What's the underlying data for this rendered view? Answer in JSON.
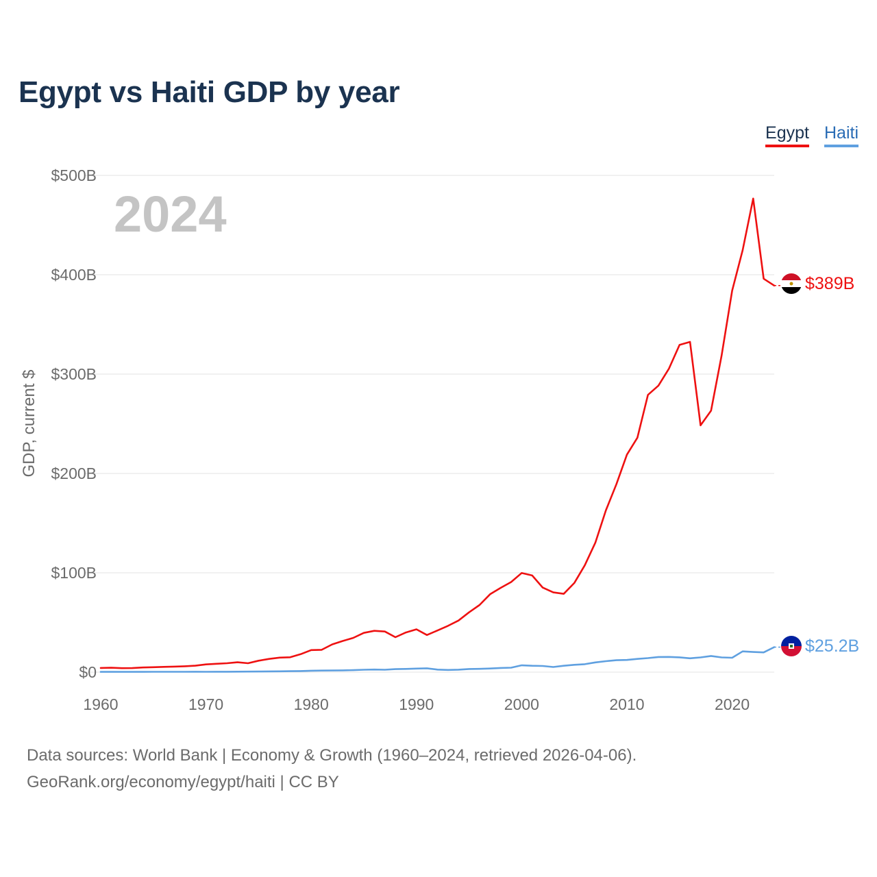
{
  "title": "Egypt vs Haiti GDP by year",
  "year_watermark": "2024",
  "source_line1": "Data sources: World Bank | Economy & Growth (1960–2024, retrieved 2026-04-06).",
  "source_line2": "GeoRank.org/economy/egypt/haiti | CC BY",
  "chart_data": {
    "type": "line",
    "title": "Egypt vs Haiti GDP by year",
    "xlabel": "",
    "ylabel": "GDP, current $",
    "xlim": [
      1960,
      2024
    ],
    "ylim": [
      0,
      500
    ],
    "y_unit": "billions USD",
    "grid": true,
    "legend_position": "top-right",
    "x_ticks": [
      1960,
      1970,
      1980,
      1990,
      2000,
      2010,
      2020
    ],
    "x_tick_labels": [
      "1960",
      "1970",
      "1980",
      "1990",
      "2000",
      "2010",
      "2020"
    ],
    "y_ticks": [
      0,
      100,
      200,
      300,
      400,
      500
    ],
    "y_tick_labels": [
      "$0",
      "$100B",
      "$200B",
      "$300B",
      "$400B",
      "$500B"
    ],
    "x": [
      1960,
      1961,
      1962,
      1963,
      1964,
      1965,
      1966,
      1967,
      1968,
      1969,
      1970,
      1971,
      1972,
      1973,
      1974,
      1975,
      1976,
      1977,
      1978,
      1979,
      1980,
      1981,
      1982,
      1983,
      1984,
      1985,
      1986,
      1987,
      1988,
      1989,
      1990,
      1991,
      1992,
      1993,
      1994,
      1995,
      1996,
      1997,
      1998,
      1999,
      2000,
      2001,
      2002,
      2003,
      2004,
      2005,
      2006,
      2007,
      2008,
      2009,
      2010,
      2011,
      2012,
      2013,
      2014,
      2015,
      2016,
      2017,
      2018,
      2019,
      2020,
      2021,
      2022,
      2023,
      2024
    ],
    "series": [
      {
        "name": "Egypt",
        "color": "#ee1111",
        "end_label": "$389B",
        "flag": "egypt-flag",
        "values": [
          4.2,
          4.4,
          4.0,
          4.1,
          4.7,
          5.0,
          5.3,
          5.6,
          5.9,
          6.5,
          7.8,
          8.4,
          9.0,
          9.9,
          9.0,
          11.5,
          13.3,
          14.6,
          15.0,
          18.1,
          22.2,
          22.5,
          27.9,
          31.4,
          34.5,
          39.5,
          41.6,
          40.9,
          35.2,
          39.9,
          43.1,
          37.4,
          41.9,
          46.6,
          51.9,
          60.2,
          67.6,
          78.4,
          84.8,
          90.7,
          99.8,
          97.3,
          85.1,
          80.3,
          78.8,
          89.7,
          107.5,
          130.3,
          162.8,
          189.1,
          218.9,
          236.0,
          279.1,
          288.4,
          305.6,
          329.4,
          332.4,
          248.4,
          263.2,
          318.7,
          384.0,
          424.7,
          476.7,
          396.0,
          389.1
        ]
      },
      {
        "name": "Haiti",
        "color": "#5fa0e0",
        "end_label": "$25.2B",
        "flag": "haiti-flag",
        "values": [
          0.27,
          0.27,
          0.29,
          0.3,
          0.31,
          0.33,
          0.35,
          0.35,
          0.35,
          0.39,
          0.37,
          0.4,
          0.41,
          0.47,
          0.56,
          0.61,
          0.75,
          0.85,
          0.96,
          1.1,
          1.46,
          1.59,
          1.68,
          1.81,
          2.03,
          2.39,
          2.65,
          2.41,
          3.02,
          3.24,
          3.59,
          3.84,
          2.56,
          2.18,
          2.47,
          3.17,
          3.29,
          3.68,
          4.18,
          4.51,
          6.9,
          6.44,
          6.2,
          5.19,
          6.43,
          7.41,
          8.01,
          9.78,
          11.03,
          12.02,
          12.26,
          13.33,
          14.13,
          15.22,
          15.28,
          14.89,
          13.92,
          14.8,
          16.25,
          14.86,
          14.48,
          20.92,
          20.29,
          19.85,
          25.2
        ]
      }
    ]
  }
}
